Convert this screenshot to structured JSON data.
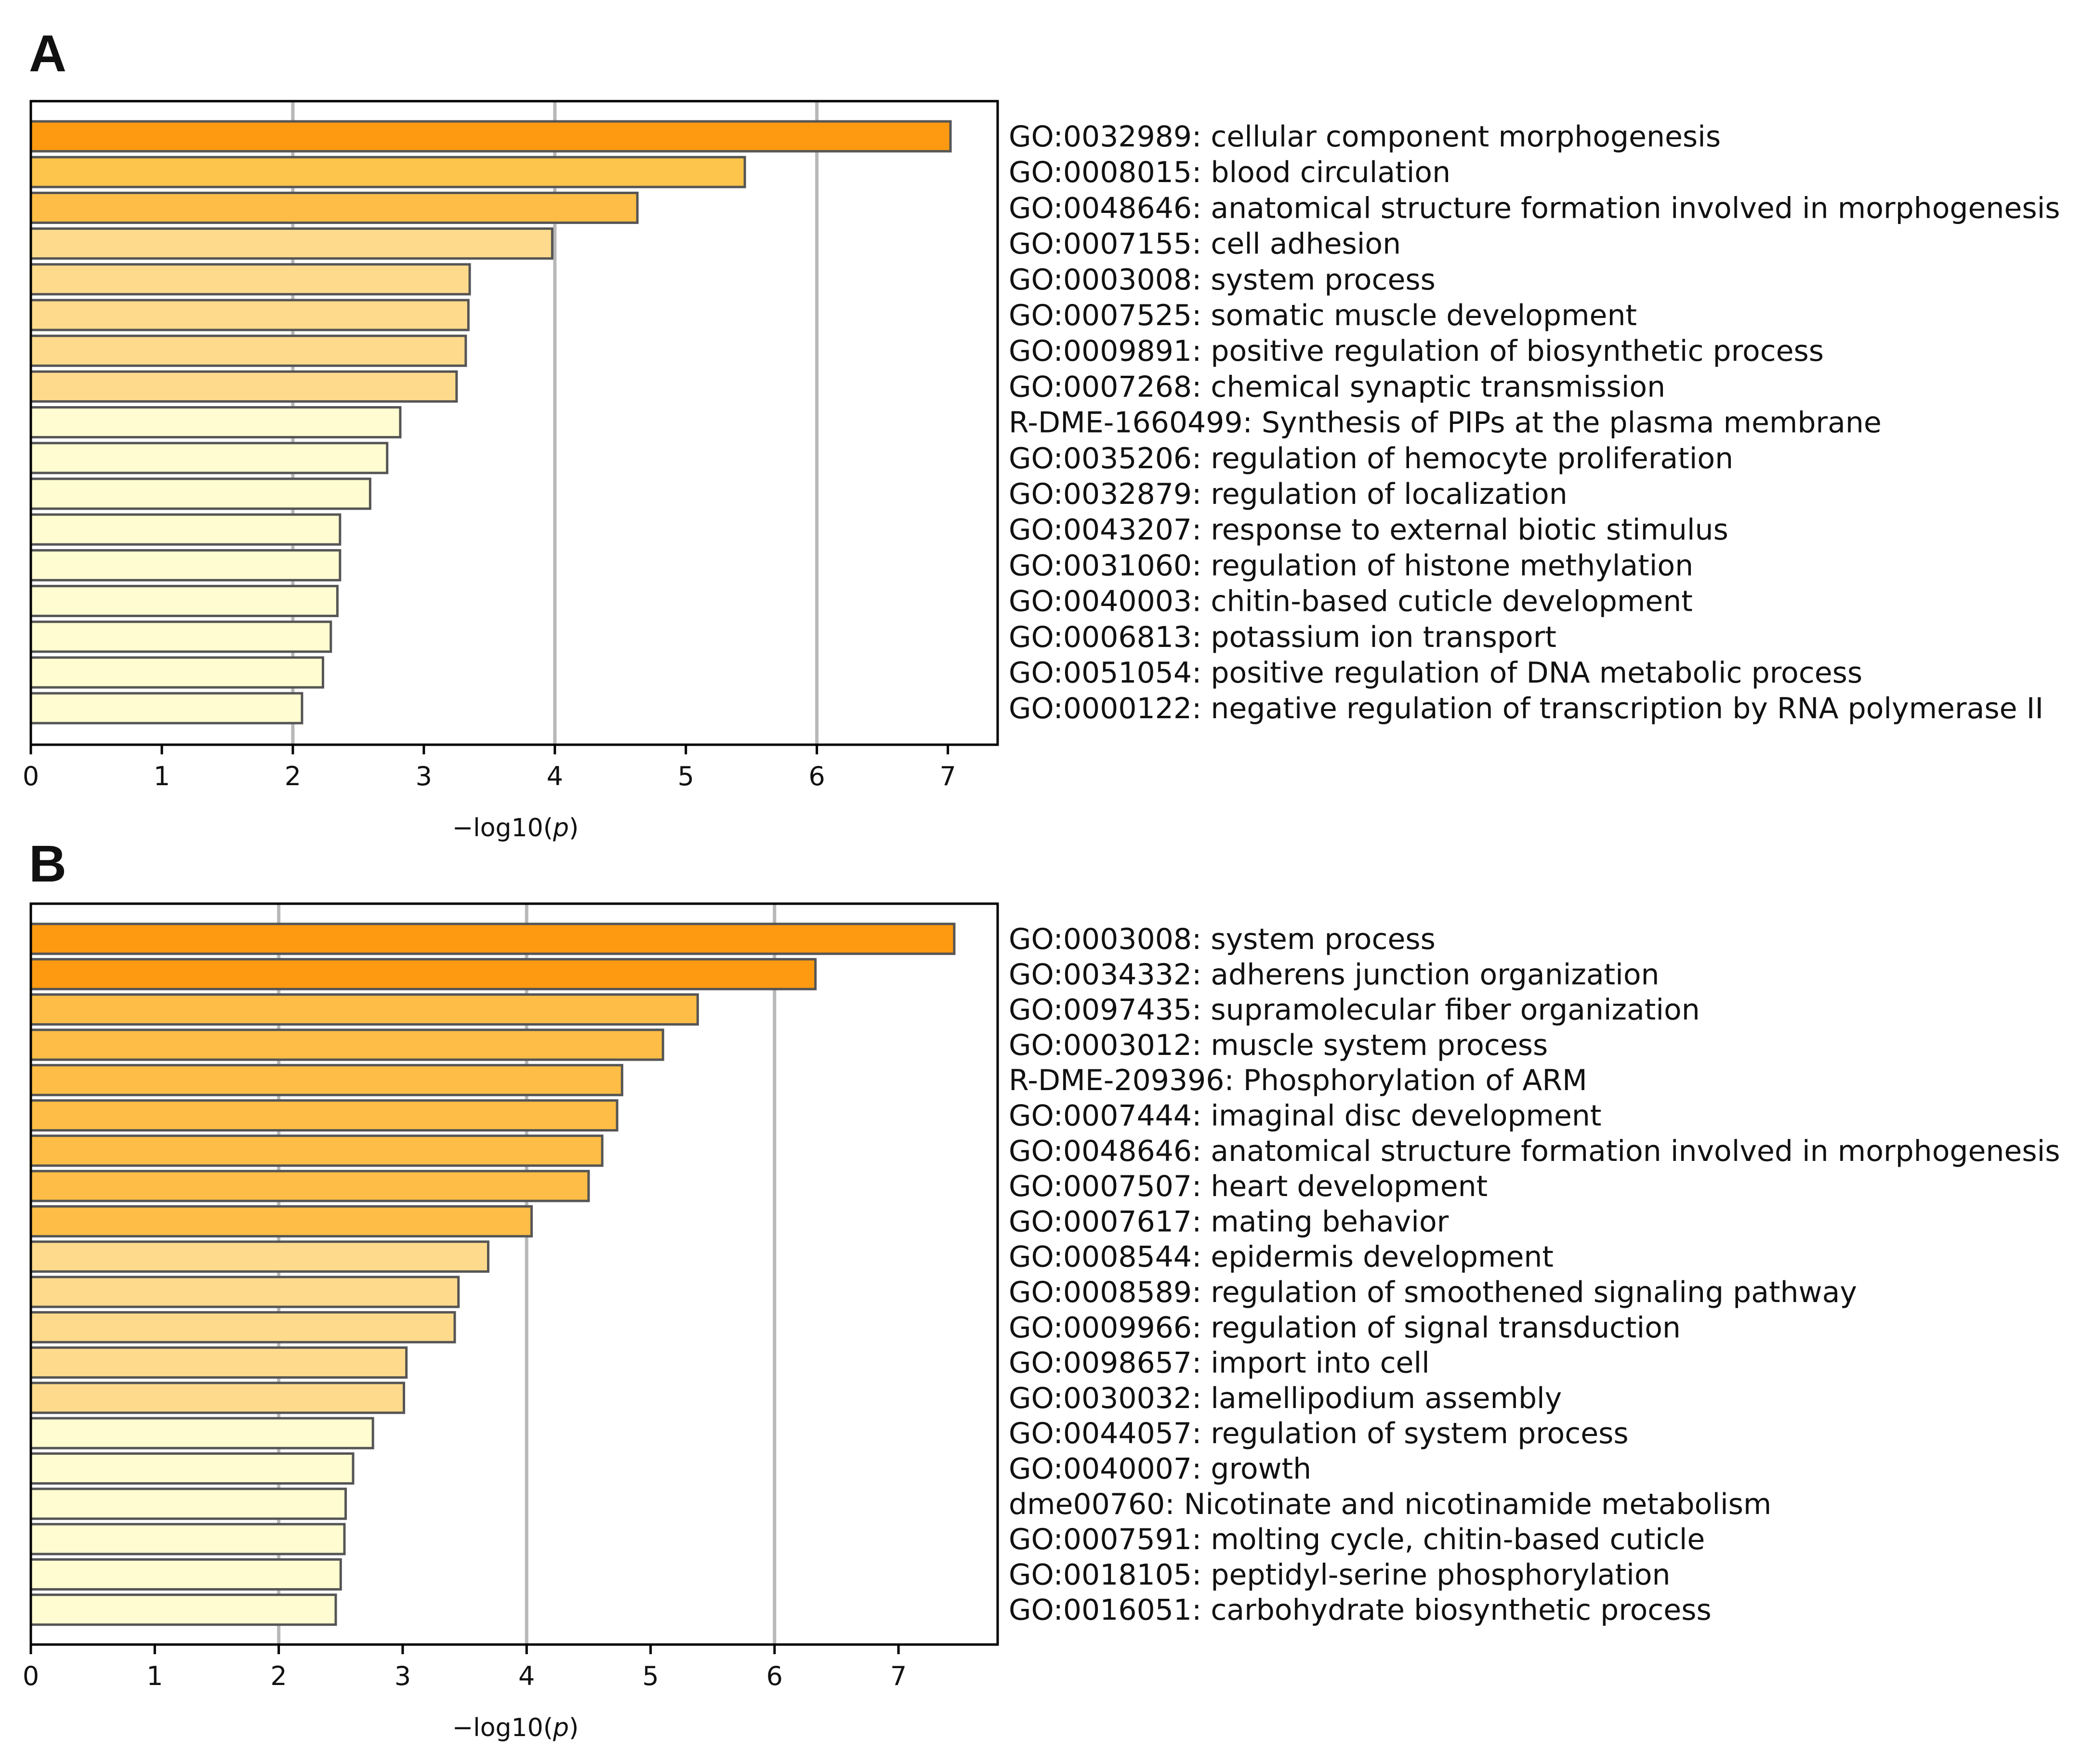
{
  "chart_data": [
    {
      "type": "bar",
      "orientation": "horizontal",
      "panel": "A",
      "xlabel": "−log10(",
      "xlabel_italic": "p",
      "xlabel_close": ")",
      "xlim": [
        0,
        7.38
      ],
      "xticks": [
        0,
        1,
        2,
        3,
        4,
        5,
        6,
        7
      ],
      "gridlines": [
        2,
        4,
        6
      ],
      "categories": [
        "GO:0032989: cellular component morphogenesis",
        "GO:0008015: blood circulation",
        "GO:0048646: anatomical structure formation involved in morphogenesis",
        "GO:0007155: cell adhesion",
        "GO:0003008: system process",
        "GO:0007525: somatic muscle development",
        "GO:0009891: positive regulation of biosynthetic process",
        "GO:0007268: chemical synaptic transmission",
        "R-DME-1660499: Synthesis of PIPs at the plasma membrane",
        "GO:0035206: regulation of hemocyte proliferation",
        "GO:0032879: regulation of localization",
        "GO:0043207: response to external biotic stimulus",
        "GO:0031060: regulation of histone methylation",
        "GO:0040003: chitin-based cuticle development",
        "GO:0006813: potassium ion transport",
        "GO:0051054: positive regulation of DNA metabolic process",
        "GO:0000122: negative regulation of transcription by RNA polymerase II"
      ],
      "values": [
        7.02,
        5.45,
        4.63,
        3.98,
        3.35,
        3.34,
        3.32,
        3.25,
        2.82,
        2.72,
        2.59,
        2.36,
        2.36,
        2.34,
        2.29,
        2.23,
        2.07
      ],
      "colors": [
        "#fd9a11",
        "#fdc54c",
        "#fdbd46",
        "#fedb8c",
        "#fedb8c",
        "#fedb8c",
        "#fedb8c",
        "#fedb8c",
        "#fefcd0",
        "#fefcd0",
        "#fefcd0",
        "#fefcd0",
        "#fefcd0",
        "#fefcd0",
        "#fefcd0",
        "#fefcd0",
        "#fefcd0"
      ]
    },
    {
      "type": "bar",
      "orientation": "horizontal",
      "panel": "B",
      "xlabel": "−log10(",
      "xlabel_italic": "p",
      "xlabel_close": ")",
      "xlim": [
        0,
        7.8
      ],
      "xticks": [
        0,
        1,
        2,
        3,
        4,
        5,
        6,
        7
      ],
      "gridlines": [
        2,
        4,
        6
      ],
      "categories": [
        "GO:0003008: system process",
        "GO:0034332: adherens junction organization",
        "GO:0097435: supramolecular fiber organization",
        "GO:0003012: muscle system process",
        "R-DME-209396: Phosphorylation of ARM",
        "GO:0007444: imaginal disc development",
        "GO:0048646: anatomical structure formation involved in morphogenesis",
        "GO:0007507: heart development",
        "GO:0007617: mating behavior",
        "GO:0008544: epidermis development",
        "GO:0008589: regulation of smoothened signaling pathway",
        "GO:0009966: regulation of signal transduction",
        "GO:0098657: import into cell",
        "GO:0030032: lamellipodium assembly",
        "GO:0044057: regulation of system process",
        "GO:0040007: growth",
        "dme00760: Nicotinate and nicotinamide metabolism",
        "GO:0007591: molting cycle, chitin-based cuticle",
        "GO:0018105: peptidyl-serine phosphorylation",
        "GO:0016051: carbohydrate biosynthetic process"
      ],
      "values": [
        7.45,
        6.33,
        5.38,
        5.1,
        4.77,
        4.73,
        4.61,
        4.5,
        4.04,
        3.69,
        3.45,
        3.42,
        3.03,
        3.01,
        2.76,
        2.6,
        2.54,
        2.53,
        2.5,
        2.46
      ],
      "colors": [
        "#fd9a11",
        "#fd9a11",
        "#fdbd46",
        "#fdbd46",
        "#fdbd46",
        "#fdbd46",
        "#fdbd46",
        "#fdbd46",
        "#fdbd46",
        "#fedb8c",
        "#fedb8c",
        "#fedb8c",
        "#fedb8c",
        "#fedb8c",
        "#fefcd0",
        "#fefcd0",
        "#fefcd0",
        "#fefcd0",
        "#fefcd0",
        "#fefcd0"
      ]
    }
  ]
}
